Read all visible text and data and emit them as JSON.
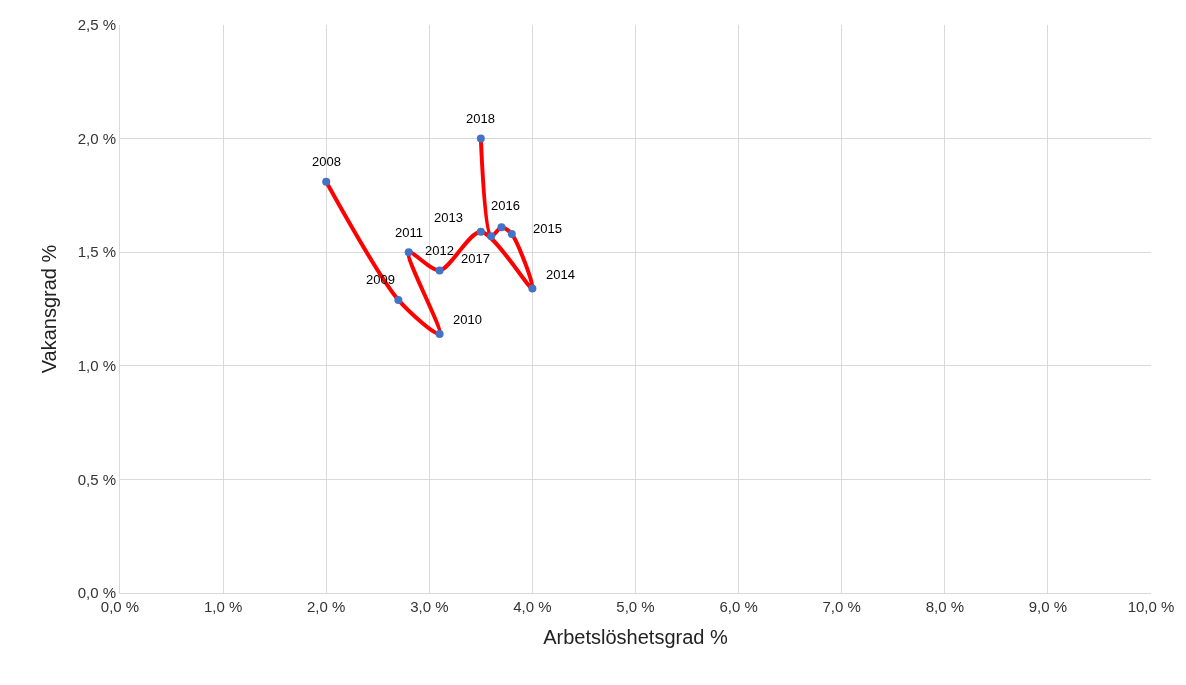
{
  "chart_data": {
    "type": "line",
    "xlabel": "Arbetslöshetsgrad %",
    "ylabel": "Vakansgrad %",
    "x": [
      2.0,
      2.7,
      3.1,
      2.8,
      3.1,
      3.5,
      4.0,
      3.8,
      3.7,
      3.6,
      3.5
    ],
    "series": [
      {
        "color": "#ff0000",
        "colors": [
          "#4472c4",
          "#4472c4",
          "#4472c4",
          "#4472c4",
          "#4472c4",
          "#4472c4",
          "#4472c4",
          "#4472c4",
          "#4472c4",
          "#4472c4",
          "#4472c4"
        ],
        "values": [
          1.81,
          1.29,
          1.14,
          1.5,
          1.42,
          1.59,
          1.34,
          1.58,
          1.61,
          1.57,
          2.0
        ]
      }
    ],
    "marker": "circle",
    "line_style": "solid",
    "grid": true,
    "xlim": [
      0,
      10
    ],
    "xticks": [
      {
        "value": 0,
        "label": "0,0 %"
      },
      {
        "value": 1,
        "label": "1,0 %"
      },
      {
        "value": 2,
        "label": "2,0 %"
      },
      {
        "value": 3,
        "label": "3,0 %"
      },
      {
        "value": 4,
        "label": "4,0 %"
      },
      {
        "value": 5,
        "label": "5,0 %"
      },
      {
        "value": 6,
        "label": "6,0 %"
      },
      {
        "value": 7,
        "label": "7,0 %"
      },
      {
        "value": 8,
        "label": "8,0 %"
      },
      {
        "value": 9,
        "label": "9,0 %"
      },
      {
        "value": 10,
        "label": "10,0 %"
      }
    ],
    "ylim": [
      0,
      2.5
    ],
    "yticks": [
      {
        "value": 0,
        "label": "0,0 %"
      },
      {
        "value": 0.5,
        "label": "0,5 %"
      },
      {
        "value": 1,
        "label": "1,0 %"
      },
      {
        "value": 1.5,
        "label": "1,5 %"
      },
      {
        "value": 2,
        "label": "2,0 %"
      },
      {
        "value": 2.5,
        "label": "2,5 %"
      }
    ],
    "annotations": [
      {
        "text": "2008",
        "x": 2.0,
        "y": 1.81
      },
      {
        "text": "2009",
        "x": 2.7,
        "y": 1.29
      },
      {
        "text": "2010",
        "x": 3.1,
        "y": 1.14
      },
      {
        "text": "2011",
        "x": 2.8,
        "y": 1.5
      },
      {
        "text": "2012",
        "x": 3.1,
        "y": 1.42
      },
      {
        "text": "2013",
        "x": 3.5,
        "y": 1.59
      },
      {
        "text": "2014",
        "x": 4.0,
        "y": 1.34
      },
      {
        "text": "2015",
        "x": 3.8,
        "y": 1.58
      },
      {
        "text": "2016",
        "x": 3.7,
        "y": 1.61
      },
      {
        "text": "2017",
        "x": 3.6,
        "y": 1.57
      },
      {
        "text": "2018",
        "x": 3.5,
        "y": 2.0
      }
    ]
  }
}
